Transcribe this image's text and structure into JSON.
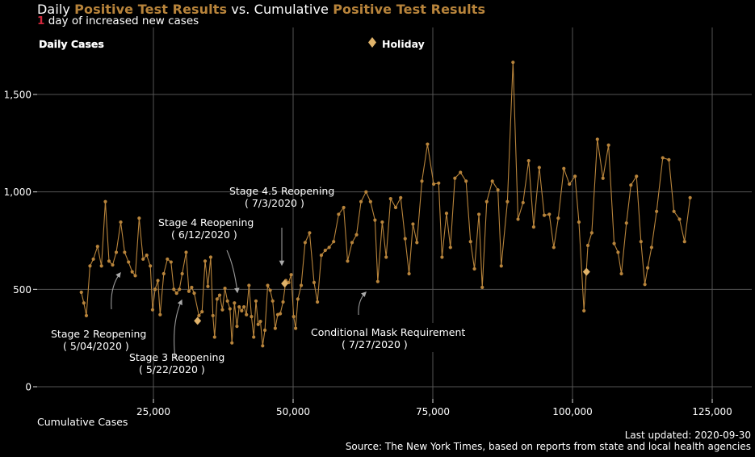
{
  "header": {
    "title_pre": "Daily",
    "title_hl1": "Positive Test Results",
    "title_mid": "vs. Cumulative",
    "title_hl2": "Positive Test Results",
    "subtitle_num": "1",
    "subtitle_text": "day of increased new cases"
  },
  "legend": {
    "daily": "Daily Cases",
    "holiday": "Holiday"
  },
  "footer": {
    "updated": "Last updated: 2020-09-30",
    "source": "Source: The New York Times, based on reports from state and local health agencies"
  },
  "colors": {
    "series": "#b8843b",
    "holiday": "#e0b36a",
    "highlight": "#d0263a",
    "grid": "#555555"
  },
  "chart_data": {
    "type": "scatter",
    "xlabel": "Cumulative Cases",
    "ylabel": "Daily Cases",
    "xlim": [
      5500,
      128000
    ],
    "ylim": [
      -50,
      1800
    ],
    "x_ticks": [
      {
        "v": 25000,
        "label": "25,000"
      },
      {
        "v": 50000,
        "label": "50,000"
      },
      {
        "v": 75000,
        "label": "75,000"
      },
      {
        "v": 100000,
        "label": "100,000"
      },
      {
        "v": 125000,
        "label": "125,000"
      }
    ],
    "y_ticks": [
      {
        "v": 0,
        "label": "0"
      },
      {
        "v": 500,
        "label": "500"
      },
      {
        "v": 1000,
        "label": "1,000"
      },
      {
        "v": 1500,
        "label": "1,500"
      }
    ],
    "series": [
      {
        "name": "Daily Cases",
        "points": [
          [
            12100,
            485
          ],
          [
            12550,
            430
          ],
          [
            13000,
            365
          ],
          [
            13650,
            620
          ],
          [
            14250,
            655
          ],
          [
            15000,
            720
          ],
          [
            15700,
            620
          ],
          [
            16400,
            950
          ],
          [
            17050,
            645
          ],
          [
            17700,
            625
          ],
          [
            18350,
            690
          ],
          [
            19150,
            845
          ],
          [
            19850,
            690
          ],
          [
            20550,
            640
          ],
          [
            21200,
            590
          ],
          [
            21750,
            570
          ],
          [
            22450,
            865
          ],
          [
            23150,
            655
          ],
          [
            23800,
            675
          ],
          [
            24450,
            620
          ],
          [
            24850,
            395
          ],
          [
            25300,
            500
          ],
          [
            25800,
            545
          ],
          [
            26200,
            370
          ],
          [
            26850,
            580
          ],
          [
            27500,
            655
          ],
          [
            28150,
            640
          ],
          [
            28650,
            500
          ],
          [
            29150,
            480
          ],
          [
            29650,
            500
          ],
          [
            30150,
            580
          ],
          [
            30850,
            690
          ],
          [
            31350,
            490
          ],
          [
            31850,
            510
          ],
          [
            32300,
            480
          ],
          [
            33150,
            365
          ],
          [
            33700,
            385
          ],
          [
            34250,
            645
          ],
          [
            34750,
            515
          ],
          [
            35250,
            665
          ],
          [
            35650,
            365
          ],
          [
            35950,
            255
          ],
          [
            36400,
            450
          ],
          [
            36850,
            470
          ],
          [
            37350,
            395
          ],
          [
            37800,
            505
          ],
          [
            38250,
            440
          ],
          [
            38700,
            400
          ],
          [
            39050,
            225
          ],
          [
            39500,
            430
          ],
          [
            39950,
            310
          ],
          [
            40350,
            410
          ],
          [
            40800,
            390
          ],
          [
            41200,
            410
          ],
          [
            41650,
            370
          ],
          [
            42100,
            520
          ],
          [
            42550,
            360
          ],
          [
            42950,
            255
          ],
          [
            43350,
            440
          ],
          [
            43750,
            320
          ],
          [
            44150,
            335
          ],
          [
            44550,
            210
          ],
          [
            44950,
            290
          ],
          [
            45450,
            520
          ],
          [
            45900,
            495
          ],
          [
            46350,
            440
          ],
          [
            46800,
            300
          ],
          [
            47250,
            370
          ],
          [
            47700,
            375
          ],
          [
            48200,
            435
          ],
          [
            48700,
            545
          ],
          [
            49200,
            535
          ],
          [
            49650,
            575
          ],
          [
            50100,
            360
          ],
          [
            50450,
            300
          ],
          [
            50850,
            450
          ],
          [
            51450,
            520
          ],
          [
            52150,
            740
          ],
          [
            52950,
            790
          ],
          [
            53750,
            535
          ],
          [
            54350,
            435
          ],
          [
            55050,
            675
          ],
          [
            55750,
            700
          ],
          [
            56450,
            715
          ],
          [
            57250,
            745
          ],
          [
            58150,
            885
          ],
          [
            59050,
            920
          ],
          [
            59750,
            645
          ],
          [
            60550,
            740
          ],
          [
            61350,
            780
          ],
          [
            62150,
            950
          ],
          [
            63050,
            1000
          ],
          [
            63850,
            950
          ],
          [
            64650,
            855
          ],
          [
            65150,
            540
          ],
          [
            65950,
            845
          ],
          [
            66650,
            665
          ],
          [
            67450,
            965
          ],
          [
            68350,
            920
          ],
          [
            69250,
            970
          ],
          [
            70050,
            760
          ],
          [
            70750,
            580
          ],
          [
            71450,
            835
          ],
          [
            72150,
            740
          ],
          [
            73050,
            1055
          ],
          [
            74050,
            1245
          ],
          [
            75150,
            1040
          ],
          [
            76050,
            1045
          ],
          [
            76650,
            665
          ],
          [
            77450,
            890
          ],
          [
            78150,
            715
          ],
          [
            78950,
            1070
          ],
          [
            79950,
            1100
          ],
          [
            80950,
            1055
          ],
          [
            81750,
            745
          ],
          [
            82450,
            605
          ],
          [
            83250,
            885
          ],
          [
            83850,
            510
          ],
          [
            84650,
            950
          ],
          [
            85650,
            1055
          ],
          [
            86650,
            1010
          ],
          [
            87250,
            620
          ],
          [
            88350,
            950
          ],
          [
            89350,
            1665
          ],
          [
            90250,
            860
          ],
          [
            91150,
            945
          ],
          [
            92150,
            1160
          ],
          [
            93050,
            820
          ],
          [
            94050,
            1125
          ],
          [
            94950,
            880
          ],
          [
            95850,
            885
          ],
          [
            96650,
            715
          ],
          [
            97450,
            865
          ],
          [
            98450,
            1120
          ],
          [
            99450,
            1040
          ],
          [
            100450,
            1080
          ],
          [
            101150,
            845
          ],
          [
            102050,
            390
          ],
          [
            102750,
            725
          ],
          [
            103450,
            790
          ],
          [
            104450,
            1270
          ],
          [
            105450,
            1070
          ],
          [
            106450,
            1240
          ],
          [
            107450,
            735
          ],
          [
            108150,
            690
          ],
          [
            108750,
            580
          ],
          [
            109650,
            840
          ],
          [
            110450,
            1035
          ],
          [
            111450,
            1080
          ],
          [
            112250,
            745
          ],
          [
            112950,
            525
          ],
          [
            113450,
            610
          ],
          [
            114150,
            715
          ],
          [
            115050,
            900
          ],
          [
            116150,
            1175
          ],
          [
            117250,
            1165
          ],
          [
            118150,
            900
          ],
          [
            119150,
            860
          ],
          [
            120050,
            745
          ],
          [
            121050,
            970
          ]
        ]
      }
    ],
    "holidays": [
      [
        32900,
        338
      ],
      [
        48500,
        530
      ],
      [
        102500,
        590
      ]
    ],
    "annotations": [
      {
        "line1": "Stage 2 Reopening",
        "line2": "( 5/04/2020 )"
      },
      {
        "line1": "Stage 3 Reopening",
        "line2": "( 5/22/2020 )"
      },
      {
        "line1": "Stage 4 Reopening",
        "line2": "( 6/12/2020 )"
      },
      {
        "line1": "Stage 4.5 Reopening",
        "line2": "( 7/3/2020 )"
      },
      {
        "line1": "Conditional Mask Requirement",
        "line2": "( 7/27/2020 )"
      }
    ]
  }
}
